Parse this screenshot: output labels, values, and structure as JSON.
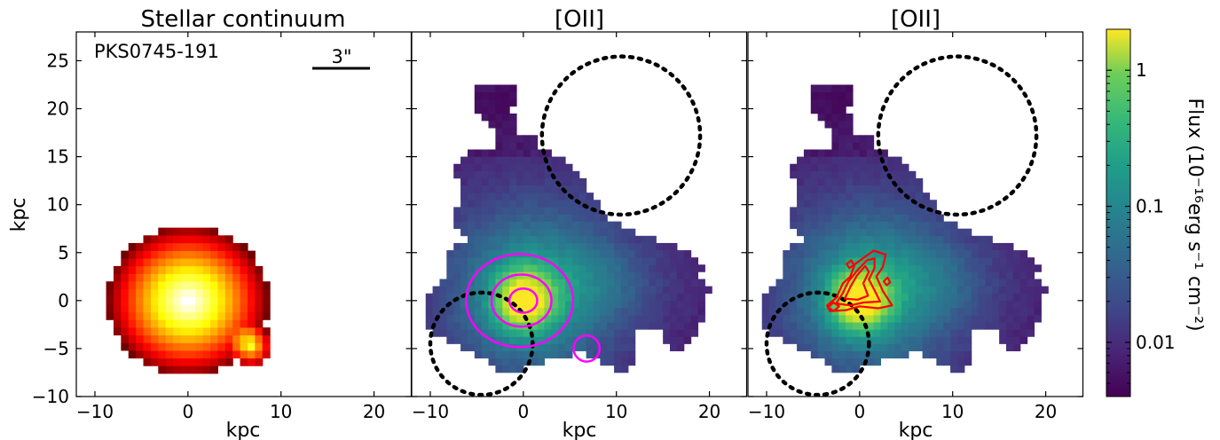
{
  "chart_data": [
    {
      "type": "heatmap",
      "title": "Stellar continuum",
      "xlabel": "kpc",
      "ylabel": "kpc",
      "xlim": [
        -12,
        24
      ],
      "ylim": [
        -10,
        28
      ],
      "xticks": [
        -10,
        0,
        10,
        20
      ],
      "yticks": [
        -10,
        -5,
        0,
        5,
        10,
        15,
        20,
        25
      ],
      "colormap": "hot",
      "annotations": {
        "object": "PKS0745-191",
        "scalebar": "3\""
      },
      "sources": [
        {
          "name": "",
          "x": 0,
          "y": 0
        },
        {
          "name": "",
          "x": 6.8,
          "y": -4.7
        }
      ]
    },
    {
      "type": "heatmap",
      "title": "[OII]",
      "xlabel": "kpc",
      "xlim": [
        -12,
        24
      ],
      "ylim": [
        -10,
        28
      ],
      "xticks": [
        -10,
        0,
        10,
        20
      ],
      "colormap": "viridis",
      "contours": {
        "color": "#ff00ff",
        "center": [
          0,
          0
        ],
        "radii": [
          1.3,
          2.8,
          5.0
        ],
        "secondary": [
          6.8,
          -5.0
        ]
      },
      "dotted_circles": [
        {
          "x": 10.5,
          "y": 17.2,
          "r": 8.5
        },
        {
          "x": -4.5,
          "y": -4.5,
          "r": 5.5
        }
      ]
    },
    {
      "type": "heatmap",
      "title": "[OII]",
      "xlabel": "kpc",
      "xlim": [
        -12,
        24
      ],
      "ylim": [
        -10,
        28
      ],
      "xticks": [
        -10,
        0,
        10,
        20
      ],
      "colormap": "viridis",
      "contours": {
        "color": "#ff0000"
      },
      "dotted_circles": [
        {
          "x": 10.5,
          "y": 17.2,
          "r": 8.5
        },
        {
          "x": -4.5,
          "y": -4.5,
          "r": 5.5
        }
      ]
    }
  ],
  "colorbar": {
    "label": "Flux (10⁻¹⁶erg s⁻¹ cm⁻²)",
    "scale": "log",
    "range": [
      0.004,
      2
    ],
    "ticks": [
      {
        "value": 1,
        "label": "1"
      },
      {
        "value": 0.1,
        "label": "0.1"
      },
      {
        "value": 0.01,
        "label": "0.01"
      }
    ]
  }
}
